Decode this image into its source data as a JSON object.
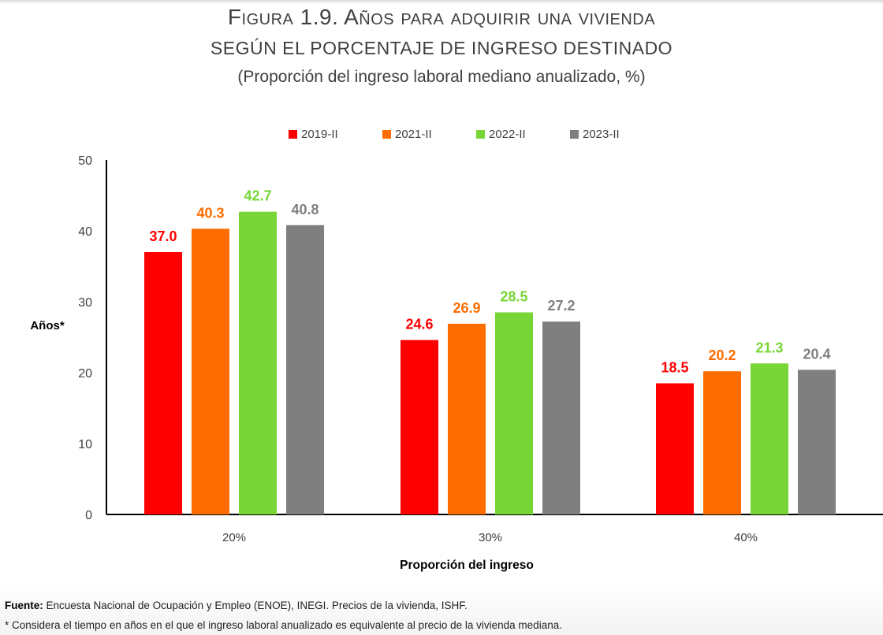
{
  "chart_data": {
    "type": "bar",
    "title": "Figura 1.9. Años para adquirir una vivienda",
    "subtitle": "SEGÚN EL PORCENTAJE DE INGRESO DESTINADO",
    "subtitle2": "(Proporción del ingreso laboral mediano anualizado, %)",
    "xlabel": "Proporción del ingreso",
    "ylabel": "Años*",
    "ylim": [
      0,
      50
    ],
    "yticks": [
      0,
      10,
      20,
      30,
      40,
      50
    ],
    "categories": [
      "20%",
      "30%",
      "40%"
    ],
    "series": [
      {
        "name": "2019-II",
        "color": "#ff0000",
        "values": [
          37.0,
          24.6,
          18.5
        ],
        "labels": [
          "37.0",
          "24.6",
          "18.5"
        ]
      },
      {
        "name": "2021-II",
        "color": "#ff6d00",
        "values": [
          40.3,
          26.9,
          20.2
        ],
        "labels": [
          "40.3",
          "26.9",
          "20.2"
        ]
      },
      {
        "name": "2022-II",
        "color": "#77d636",
        "values": [
          42.7,
          28.5,
          21.3
        ],
        "labels": [
          "42.7",
          "28.5",
          "21.3"
        ]
      },
      {
        "name": "2023-II",
        "color": "#7f7f7f",
        "values": [
          40.8,
          27.2,
          20.4
        ],
        "labels": [
          "40.8",
          "27.2",
          "20.4"
        ]
      }
    ],
    "grid": false,
    "legend_position": "top-center",
    "data_labels": true
  },
  "footer": {
    "source_label": "Fuente:",
    "source_text": " Encuesta Nacional de Ocupación y Empleo (ENOE), INEGI. Precios de la vivienda, ISHF.",
    "note": "* Considera el tiempo en años en el que el ingreso laboral anualizado es equivalente al precio de la vivienda mediana."
  }
}
